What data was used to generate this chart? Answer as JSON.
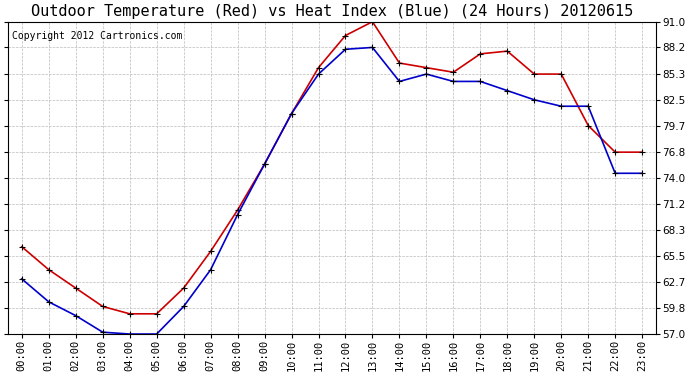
{
  "title": "Outdoor Temperature (Red) vs Heat Index (Blue) (24 Hours) 20120615",
  "copyright_text": "Copyright 2012 Cartronics.com",
  "hours": [
    0,
    1,
    2,
    3,
    4,
    5,
    6,
    7,
    8,
    9,
    10,
    11,
    12,
    13,
    14,
    15,
    16,
    17,
    18,
    19,
    20,
    21,
    22,
    23
  ],
  "temp_red": [
    66.5,
    64.0,
    62.0,
    60.0,
    59.2,
    59.2,
    62.0,
    66.0,
    70.5,
    75.5,
    81.0,
    86.0,
    89.5,
    91.0,
    86.5,
    86.0,
    85.5,
    87.5,
    87.8,
    85.3,
    85.3,
    79.7,
    76.8,
    76.8
  ],
  "heat_blue": [
    63.0,
    60.5,
    59.0,
    57.2,
    57.0,
    57.0,
    60.0,
    64.0,
    70.0,
    75.5,
    81.0,
    85.3,
    88.0,
    88.2,
    84.5,
    85.3,
    84.5,
    84.5,
    83.5,
    82.5,
    81.8,
    81.8,
    74.5,
    74.5
  ],
  "ylim": [
    57.0,
    91.0
  ],
  "yticks": [
    57.0,
    59.8,
    62.7,
    65.5,
    68.3,
    71.2,
    74.0,
    76.8,
    79.7,
    82.5,
    85.3,
    88.2,
    91.0
  ],
  "red_color": "#cc0000",
  "blue_color": "#0000cc",
  "bg_color": "#ffffff",
  "plot_bg_color": "#ffffff",
  "grid_color": "#bbbbbb",
  "title_fontsize": 11,
  "copyright_fontsize": 7,
  "tick_fontsize": 7.5
}
